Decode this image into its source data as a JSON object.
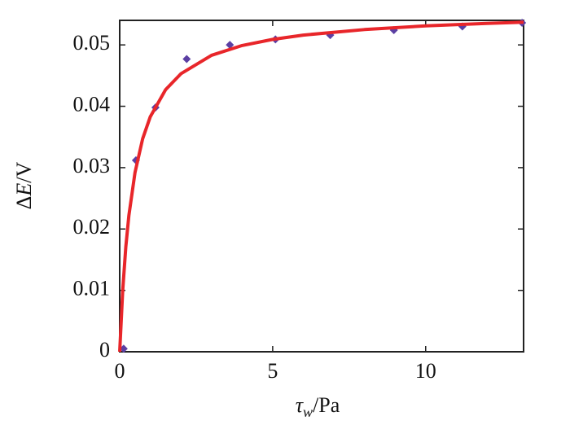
{
  "chart_data": {
    "type": "scatter",
    "x_label": {
      "symbol": "τ",
      "subscript": "w",
      "unit": "/Pa"
    },
    "y_label": {
      "prefix": "Δ",
      "symbol": "E",
      "unit": "/V"
    },
    "xlim": [
      0,
      13.2
    ],
    "ylim": [
      0,
      0.054
    ],
    "xticks": [
      0,
      5,
      10
    ],
    "yticks": [
      0,
      0.01,
      0.02,
      0.03,
      0.04,
      0.05
    ],
    "series": [
      {
        "mode": "markers",
        "color": "#5b3fa3",
        "x": [
          0.13,
          0.53,
          1.17,
          2.19,
          3.6,
          5.09,
          6.88,
          8.96,
          11.2,
          13.15
        ],
        "values": [
          0.0005,
          0.0312,
          0.0398,
          0.0477,
          0.05,
          0.0509,
          0.0516,
          0.0524,
          0.053,
          0.0536
        ]
      },
      {
        "mode": "line",
        "color": "#e8262a",
        "x": [
          0,
          0.1,
          0.2,
          0.3,
          0.5,
          0.75,
          1,
          1.5,
          2,
          3,
          4,
          5,
          6,
          8,
          10,
          12,
          13.2
        ],
        "values": [
          0,
          0.0101,
          0.0171,
          0.0222,
          0.0292,
          0.0347,
          0.0383,
          0.0427,
          0.0453,
          0.0483,
          0.0499,
          0.0509,
          0.0516,
          0.0525,
          0.0531,
          0.0535,
          0.0537
        ]
      }
    ]
  }
}
